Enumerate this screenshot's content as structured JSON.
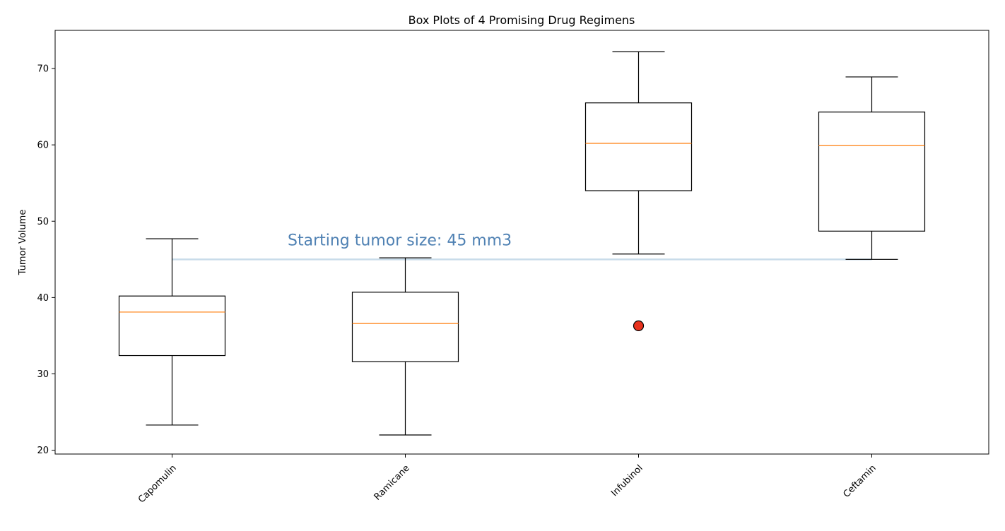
{
  "chart_data": {
    "type": "box",
    "title": "Box Plots of 4 Promising Drug Regimens",
    "xlabel": "",
    "ylabel": "Tumor Volume",
    "ylim": [
      19.5,
      75
    ],
    "yticks": [
      20,
      30,
      40,
      50,
      60,
      70
    ],
    "categories": [
      "Capomulin",
      "Ramicane",
      "Infubinol",
      "Ceftamin"
    ],
    "boxes": [
      {
        "category": "Capomulin",
        "whisker_low": 23.3,
        "q1": 32.4,
        "median": 38.1,
        "q3": 40.2,
        "whisker_high": 47.7,
        "outliers": []
      },
      {
        "category": "Ramicane",
        "whisker_low": 22.0,
        "q1": 31.6,
        "median": 36.6,
        "q3": 40.7,
        "whisker_high": 45.2,
        "outliers": []
      },
      {
        "category": "Infubinol",
        "whisker_low": 45.7,
        "q1": 54.0,
        "median": 60.2,
        "q3": 65.5,
        "whisker_high": 72.2,
        "outliers": [
          36.3
        ]
      },
      {
        "category": "Ceftamin",
        "whisker_low": 45.0,
        "q1": 48.7,
        "median": 59.9,
        "q3": 64.3,
        "whisker_high": 68.9,
        "outliers": []
      }
    ],
    "reference_line": {
      "y": 45,
      "label": "Starting tumor size: 45 mm3"
    },
    "grid": false,
    "legend": "none"
  },
  "colors": {
    "box": "#000000",
    "median": "#ff7f0e",
    "outlier_fill": "#e8321e",
    "reference_line": "#c9dcea",
    "annotation_text": "#4f81b3",
    "text": "#000000"
  }
}
